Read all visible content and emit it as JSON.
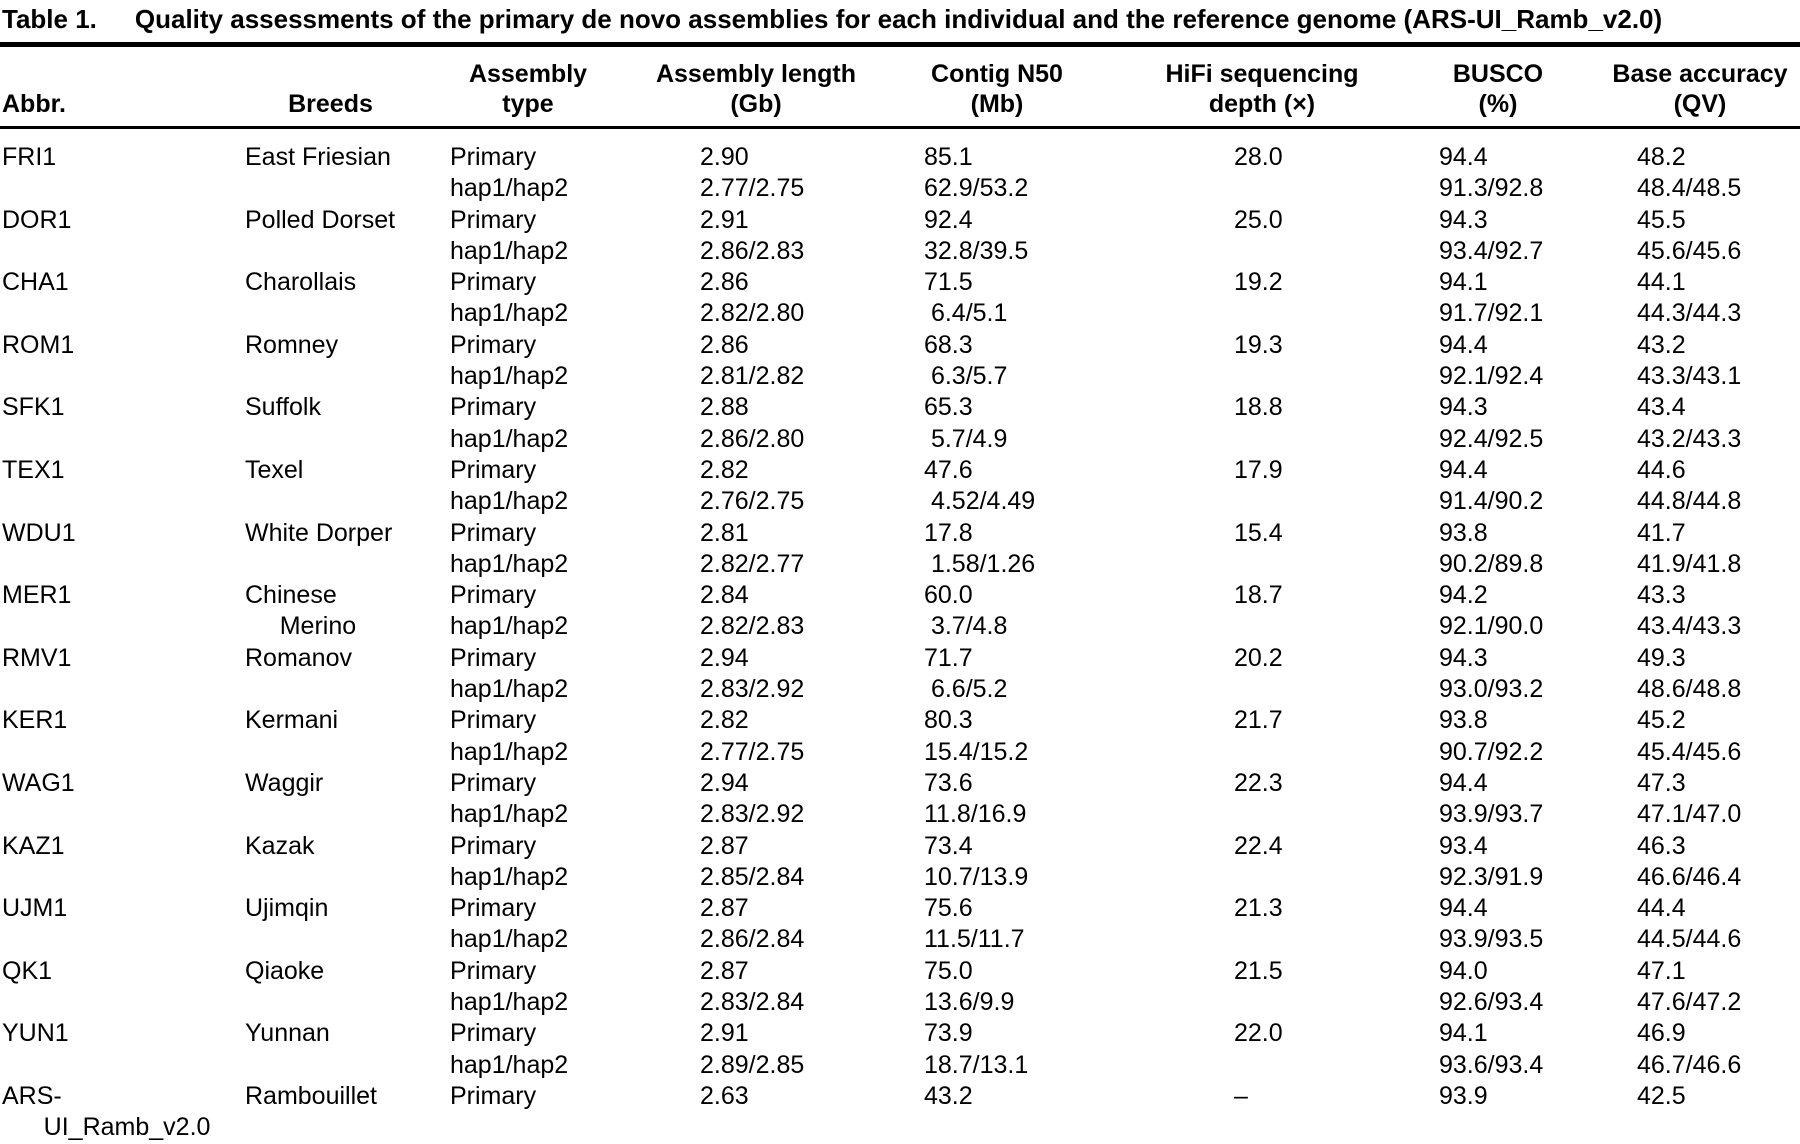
{
  "title": {
    "label": "Table 1.",
    "text": "Quality assessments of the primary de novo assemblies for each individual and the reference genome (ARS-UI_Ramb_v2.0)"
  },
  "table": {
    "headers": [
      "Abbr.",
      "Breeds",
      "Assembly\ntype",
      "Assembly length\n(Gb)",
      "Contig N50\n(Mb)",
      "HiFi sequencing\ndepth (×)",
      "BUSCO\n(%)",
      "Base accuracy\n(QV)"
    ],
    "rows": [
      [
        "FRI1",
        "East Friesian",
        "Primary",
        "2.90",
        "85.1",
        "28.0",
        "94.4",
        "48.2"
      ],
      [
        "",
        "",
        "hap1/hap2",
        "2.77/2.75",
        "62.9/53.2",
        "",
        "91.3/92.8",
        "48.4/48.5"
      ],
      [
        "DOR1",
        "Polled Dorset",
        "Primary",
        "2.91",
        "92.4",
        "25.0",
        "94.3",
        "45.5"
      ],
      [
        "",
        "",
        "hap1/hap2",
        "2.86/2.83",
        "32.8/39.5",
        "",
        "93.4/92.7",
        "45.6/45.6"
      ],
      [
        "CHA1",
        "Charollais",
        "Primary",
        "2.86",
        "71.5",
        "19.2",
        "94.1",
        "44.1"
      ],
      [
        "",
        "",
        "hap1/hap2",
        "2.82/2.80",
        " 6.4/5.1",
        "",
        "91.7/92.1",
        "44.3/44.3"
      ],
      [
        "ROM1",
        "Romney",
        "Primary",
        "2.86",
        "68.3",
        "19.3",
        "94.4",
        "43.2"
      ],
      [
        "",
        "",
        "hap1/hap2",
        "2.81/2.82",
        " 6.3/5.7",
        "",
        "92.1/92.4",
        "43.3/43.1"
      ],
      [
        "SFK1",
        "Suffolk",
        "Primary",
        "2.88",
        "65.3",
        "18.8",
        "94.3",
        "43.4"
      ],
      [
        "",
        "",
        "hap1/hap2",
        "2.86/2.80",
        " 5.7/4.9",
        "",
        "92.4/92.5",
        "43.2/43.3"
      ],
      [
        "TEX1",
        "Texel",
        "Primary",
        "2.82",
        "47.6",
        "17.9",
        "94.4",
        "44.6"
      ],
      [
        "",
        "",
        "hap1/hap2",
        "2.76/2.75",
        " 4.52/4.49",
        "",
        "91.4/90.2",
        "44.8/44.8"
      ],
      [
        "WDU1",
        "White Dorper",
        "Primary",
        "2.81",
        "17.8",
        "15.4",
        "93.8",
        "41.7"
      ],
      [
        "",
        "",
        "hap1/hap2",
        "2.82/2.77",
        " 1.58/1.26",
        "",
        "90.2/89.8",
        "41.9/41.8"
      ],
      [
        "MER1",
        "Chinese",
        "Primary",
        "2.84",
        "60.0",
        "18.7",
        "94.2",
        "43.3"
      ],
      [
        "",
        "     Merino",
        "hap1/hap2",
        "2.82/2.83",
        " 3.7/4.8",
        "",
        "92.1/90.0",
        "43.4/43.3"
      ],
      [
        "RMV1",
        "Romanov",
        "Primary",
        "2.94",
        "71.7",
        "20.2",
        "94.3",
        "49.3"
      ],
      [
        "",
        "",
        "hap1/hap2",
        "2.83/2.92",
        " 6.6/5.2",
        "",
        "93.0/93.2",
        "48.6/48.8"
      ],
      [
        "KER1",
        "Kermani",
        "Primary",
        "2.82",
        "80.3",
        "21.7",
        "93.8",
        "45.2"
      ],
      [
        "",
        "",
        "hap1/hap2",
        "2.77/2.75",
        "15.4/15.2",
        "",
        "90.7/92.2",
        "45.4/45.6"
      ],
      [
        "WAG1",
        "Waggir",
        "Primary",
        "2.94",
        "73.6",
        "22.3",
        "94.4",
        "47.3"
      ],
      [
        "",
        "",
        "hap1/hap2",
        "2.83/2.92",
        "11.8/16.9",
        "",
        "93.9/93.7",
        "47.1/47.0"
      ],
      [
        "KAZ1",
        "Kazak",
        "Primary",
        "2.87",
        "73.4",
        "22.4",
        "93.4",
        "46.3"
      ],
      [
        "",
        "",
        "hap1/hap2",
        "2.85/2.84",
        "10.7/13.9",
        "",
        "92.3/91.9",
        "46.6/46.4"
      ],
      [
        "UJM1",
        "Ujimqin",
        "Primary",
        "2.87",
        "75.6",
        "21.3",
        "94.4",
        "44.4"
      ],
      [
        "",
        "",
        "hap1/hap2",
        "2.86/2.84",
        "11.5/11.7",
        "",
        "93.9/93.5",
        "44.5/44.6"
      ],
      [
        "QK1",
        "Qiaoke",
        "Primary",
        "2.87",
        "75.0",
        "21.5",
        "94.0",
        "47.1"
      ],
      [
        "",
        "",
        "hap1/hap2",
        "2.83/2.84",
        "13.6/9.9",
        "",
        "92.6/93.4",
        "47.6/47.2"
      ],
      [
        "YUN1",
        "Yunnan",
        "Primary",
        "2.91",
        "73.9",
        "22.0",
        "94.1",
        "46.9"
      ],
      [
        "",
        "",
        "hap1/hap2",
        "2.89/2.85",
        "18.7/13.1",
        "",
        "93.6/93.4",
        "46.7/46.6"
      ],
      [
        "ARS-",
        "Rambouillet",
        "Primary",
        "2.63",
        "43.2",
        "–",
        "93.9",
        "42.5"
      ],
      [
        "      UI_Ramb_v2.0",
        "",
        "",
        "",
        "",
        "",
        "",
        ""
      ]
    ]
  }
}
